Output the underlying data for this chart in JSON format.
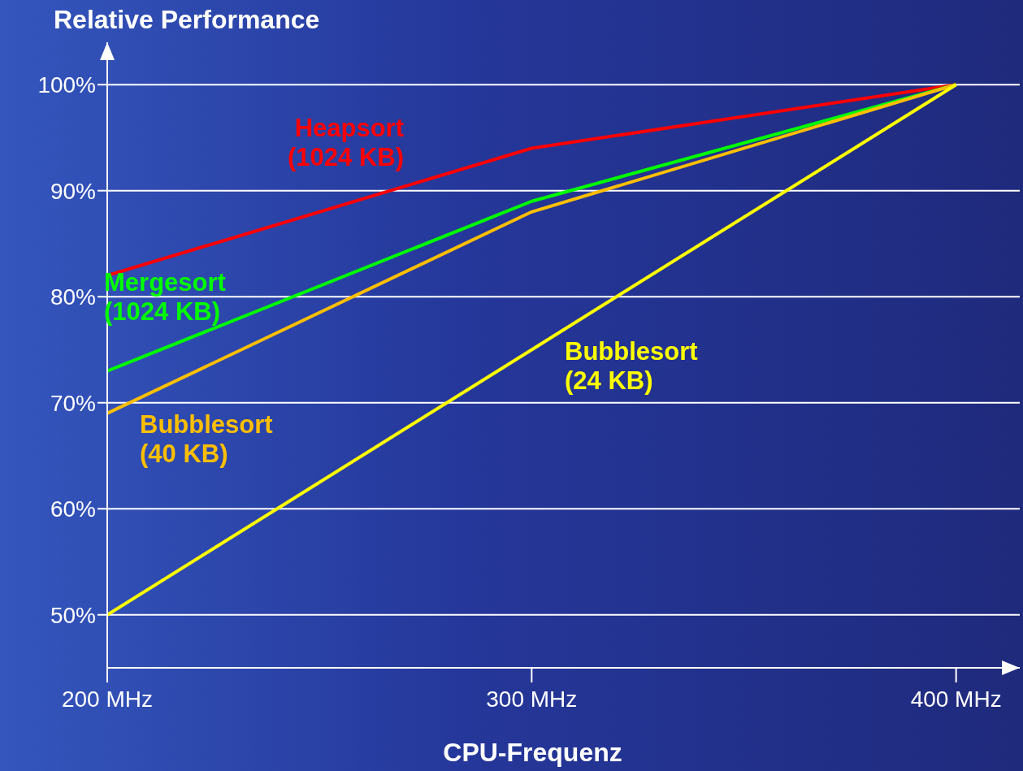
{
  "chart_data": {
    "type": "line",
    "xlabel": "CPU-Frequenz",
    "ylabel": "Relative Performance",
    "x": [
      200,
      300,
      400
    ],
    "xlim": [
      200,
      415
    ],
    "xticks": [
      {
        "value": 200,
        "label": "200 MHz"
      },
      {
        "value": 300,
        "label": "300 MHz"
      },
      {
        "value": 400,
        "label": "400 MHz"
      }
    ],
    "ylim": [
      45,
      104
    ],
    "yticks": [
      {
        "value": 50,
        "label": "50%"
      },
      {
        "value": 60,
        "label": "60%"
      },
      {
        "value": 70,
        "label": "70%"
      },
      {
        "value": 80,
        "label": "80%"
      },
      {
        "value": 90,
        "label": "90%"
      },
      {
        "value": 100,
        "label": "100%"
      }
    ],
    "grid": "y",
    "marker": "none",
    "line_style": "solid",
    "series": [
      {
        "name": "Heapsort (1024 KB)",
        "color": "#ff0000",
        "values": [
          82,
          94,
          100
        ]
      },
      {
        "name": "Mergesort (1024 KB)",
        "color": "#00ff00",
        "values": [
          73,
          89,
          100
        ]
      },
      {
        "name": "Bubblesort (40 KB)",
        "color": "#ffbf00",
        "values": [
          69,
          88,
          100
        ]
      },
      {
        "name": "Bubblesort (24 KB)",
        "color": "#ffff00",
        "values": [
          50,
          75,
          100
        ]
      }
    ]
  }
}
